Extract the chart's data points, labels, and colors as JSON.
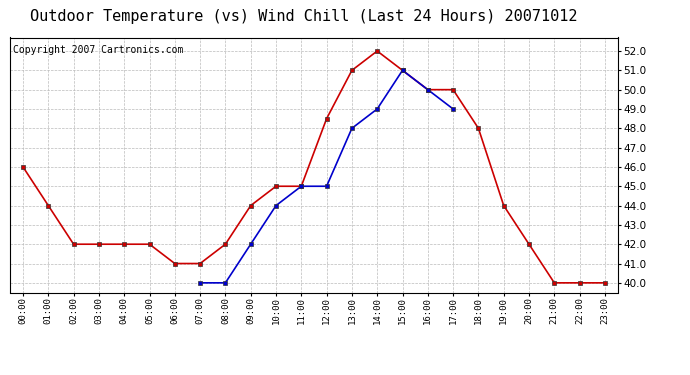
{
  "title": "Outdoor Temperature (vs) Wind Chill (Last 24 Hours) 20071012",
  "copyright": "Copyright 2007 Cartronics.com",
  "hours": [
    "00:00",
    "01:00",
    "02:00",
    "03:00",
    "04:00",
    "05:00",
    "06:00",
    "07:00",
    "08:00",
    "09:00",
    "10:00",
    "11:00",
    "12:00",
    "13:00",
    "14:00",
    "15:00",
    "16:00",
    "17:00",
    "18:00",
    "19:00",
    "20:00",
    "21:00",
    "22:00",
    "23:00"
  ],
  "temp_red": [
    46,
    44,
    42,
    42,
    42,
    42,
    41,
    41,
    42,
    44,
    45,
    45,
    48.5,
    51,
    52,
    51,
    50,
    50,
    48,
    44,
    42,
    40,
    40,
    40
  ],
  "wind_chill_blue": [
    null,
    null,
    null,
    null,
    null,
    null,
    null,
    40,
    40,
    42,
    44,
    45,
    45,
    48,
    49,
    51,
    50,
    49,
    null,
    null,
    null,
    null,
    null,
    null
  ],
  "ylim_min": 39.5,
  "ylim_max": 52.7,
  "yticks": [
    40.0,
    41.0,
    42.0,
    43.0,
    44.0,
    45.0,
    46.0,
    47.0,
    48.0,
    49.0,
    50.0,
    51.0,
    52.0
  ],
  "red_color": "#cc0000",
  "blue_color": "#0000cc",
  "bg_color": "#ffffff",
  "grid_color": "#bbbbbb",
  "title_fontsize": 11,
  "copyright_fontsize": 7
}
